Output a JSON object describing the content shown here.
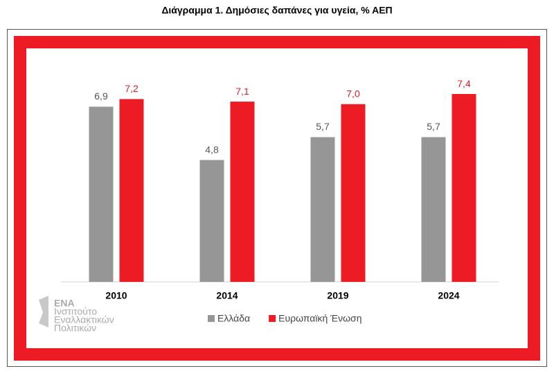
{
  "chart_data": {
    "type": "bar",
    "title": "Διάγραμμα 1. Δημόσιες δαπάνες για υγεία, % ΑΕΠ",
    "categories": [
      "2010",
      "2014",
      "2019",
      "2024"
    ],
    "series": [
      {
        "name": "Ελλάδα",
        "color": "#969696",
        "values": [
          6.9,
          4.8,
          5.7,
          5.7
        ],
        "value_labels": [
          "6,9",
          "4,8",
          "5,7",
          "5,7"
        ]
      },
      {
        "name": "Ευρωπαϊκή Ένωση",
        "color": "#ed1c24",
        "values": [
          7.2,
          7.1,
          7.0,
          7.4
        ],
        "value_labels": [
          "7,2",
          "7,1",
          "7,0",
          "7,4"
        ]
      }
    ],
    "ylim": [
      0,
      8
    ],
    "legend": "bottom",
    "annotations": [
      "ΕΝΑ",
      "Ινστιτούτο",
      "Εναλλακτικών",
      "Πολιτικών"
    ]
  }
}
